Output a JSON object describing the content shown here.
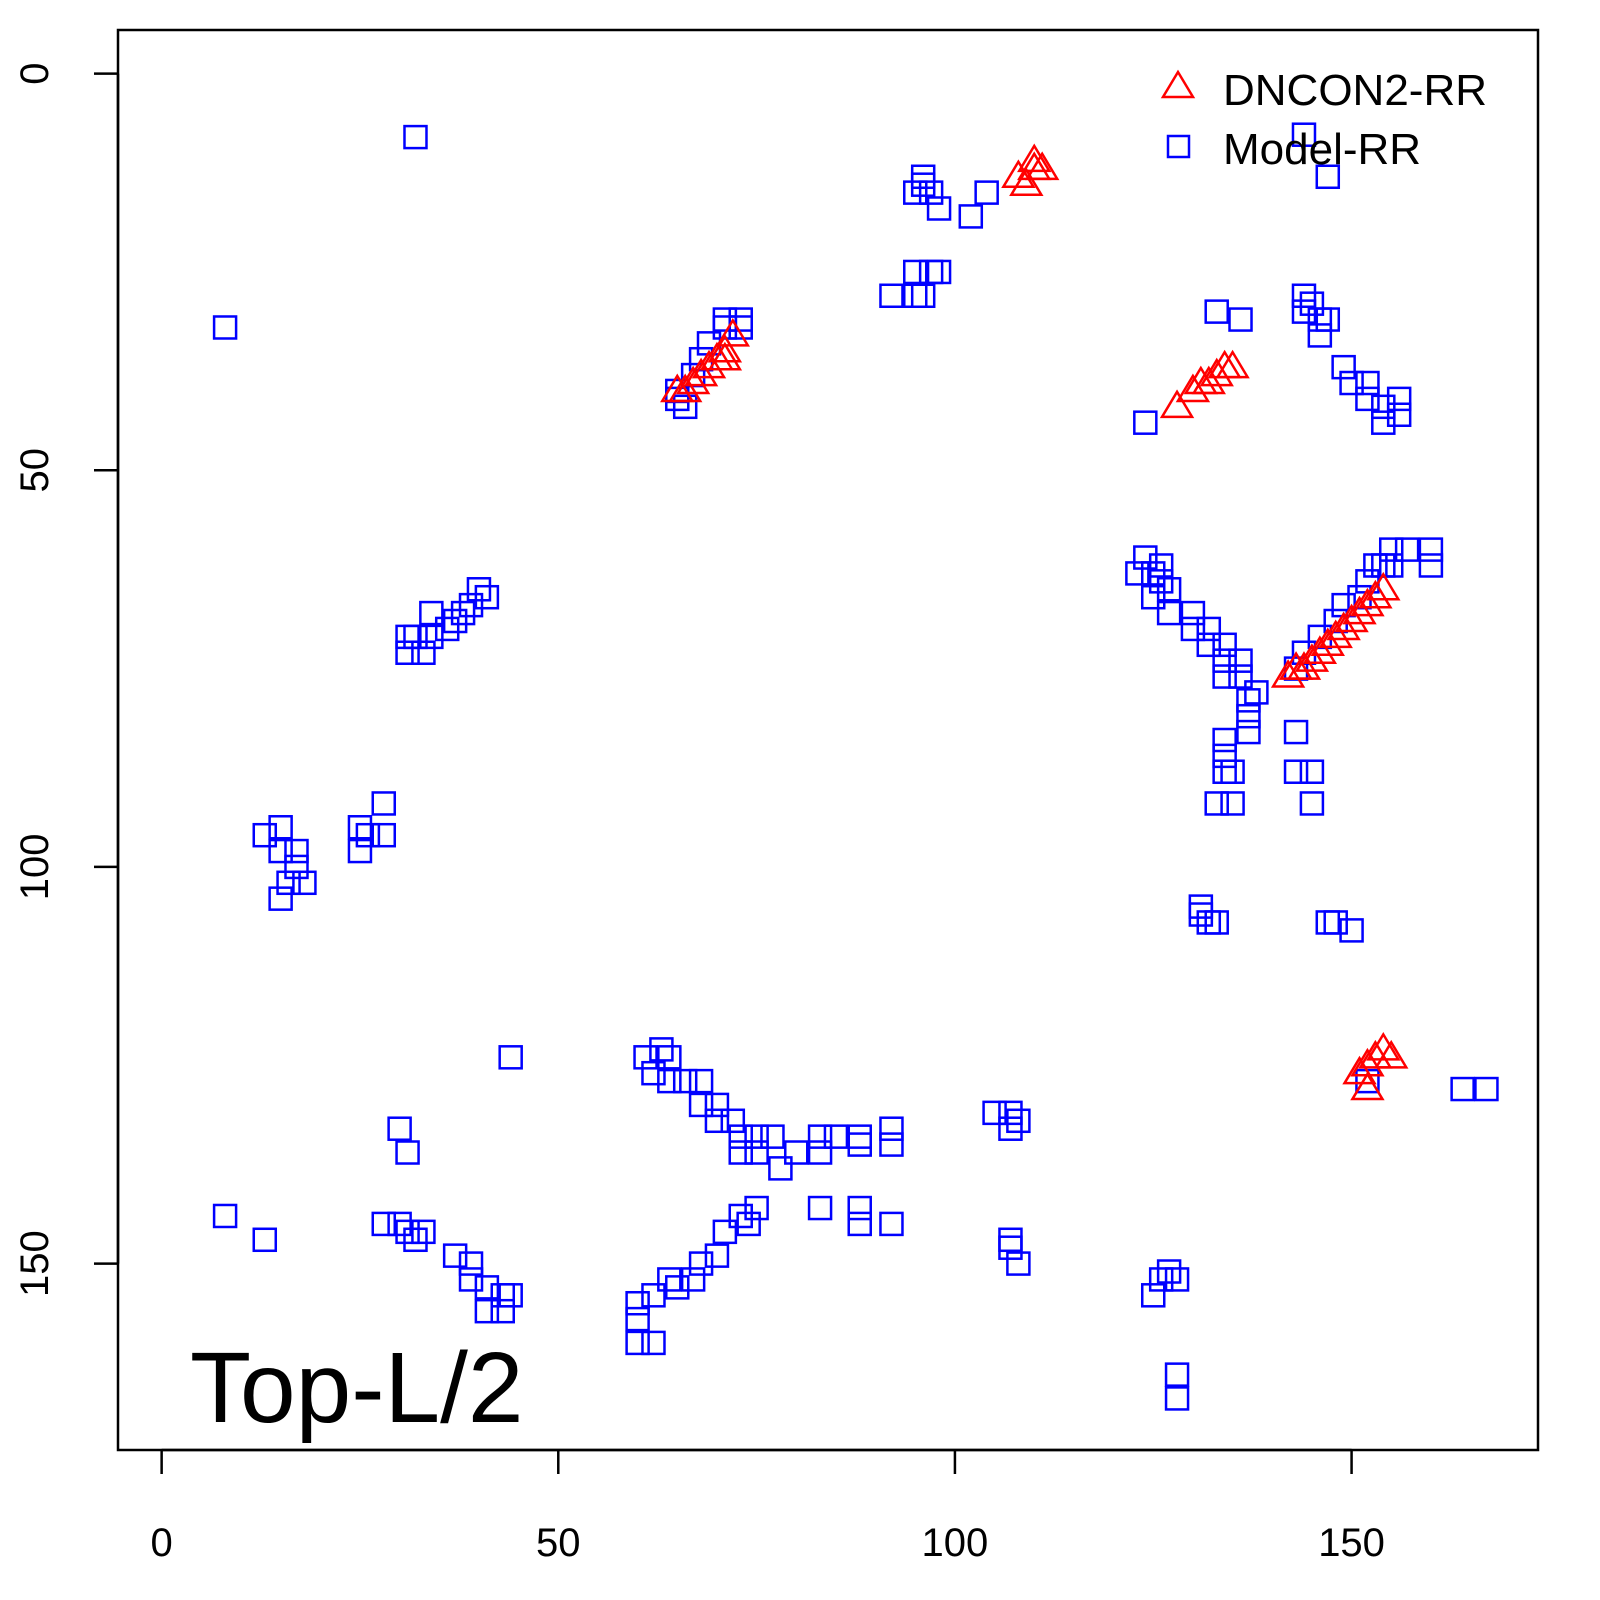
{
  "chart_data": {
    "type": "scatter",
    "title": "",
    "xlabel": "",
    "ylabel": "",
    "xlim": [
      -5.5,
      173.5
    ],
    "ylim": [
      -5.5,
      173.5
    ],
    "y_inverted": true,
    "grid": false,
    "x_ticks": [
      "0",
      "50",
      "100",
      "150"
    ],
    "y_ticks": [
      "0",
      "50",
      "100",
      "150"
    ],
    "annotation": "Top-L/2",
    "legend": {
      "placement": "top-right",
      "entries": [
        "DNCON2-RR",
        "Model-RR"
      ]
    },
    "colors": {
      "DNCON2-RR": "#ff0000",
      "Model-RR": "#0000ff"
    },
    "series": [
      {
        "name": "DNCON2-RR",
        "marker": "triangle",
        "points": [
          [
            110,
            11
          ],
          [
            111,
            12
          ],
          [
            108,
            13
          ],
          [
            109,
            14
          ],
          [
            110,
            12
          ],
          [
            72,
            33
          ],
          [
            71,
            35
          ],
          [
            70,
            36
          ],
          [
            69,
            37
          ],
          [
            68,
            38
          ],
          [
            67,
            39
          ],
          [
            66,
            40
          ],
          [
            65,
            40
          ],
          [
            71,
            36
          ],
          [
            134,
            37
          ],
          [
            133,
            38
          ],
          [
            132,
            39
          ],
          [
            131,
            39
          ],
          [
            130,
            40
          ],
          [
            128,
            42
          ],
          [
            135,
            37
          ],
          [
            154,
            65
          ],
          [
            153,
            66
          ],
          [
            152,
            67
          ],
          [
            151,
            68
          ],
          [
            150,
            69
          ],
          [
            149,
            70
          ],
          [
            148,
            71
          ],
          [
            147,
            72
          ],
          [
            146,
            73
          ],
          [
            145,
            74
          ],
          [
            144,
            75
          ],
          [
            143,
            75
          ],
          [
            142,
            76
          ],
          [
            154,
            123
          ],
          [
            153,
            124
          ],
          [
            152,
            125
          ],
          [
            151,
            126
          ],
          [
            152,
            128
          ],
          [
            155,
            124
          ]
        ]
      },
      {
        "name": "Model-RR",
        "marker": "square",
        "points": [
          [
            32,
            8
          ],
          [
            8,
            32
          ],
          [
            144,
            7.7
          ],
          [
            147,
            13
          ],
          [
            96,
            13
          ],
          [
            95,
            15
          ],
          [
            97,
            15
          ],
          [
            98,
            17
          ],
          [
            102,
            18
          ],
          [
            104,
            15
          ],
          [
            96,
            14
          ],
          [
            92,
            28
          ],
          [
            95,
            25
          ],
          [
            97,
            25
          ],
          [
            98,
            25
          ],
          [
            95,
            28
          ],
          [
            96,
            28
          ],
          [
            73,
            31
          ],
          [
            71,
            31
          ],
          [
            71,
            32
          ],
          [
            73,
            32
          ],
          [
            69,
            34
          ],
          [
            68,
            36
          ],
          [
            67,
            38
          ],
          [
            65,
            40
          ],
          [
            66,
            42
          ],
          [
            65,
            41
          ],
          [
            133,
            30
          ],
          [
            136,
            31
          ],
          [
            124,
            44
          ],
          [
            144,
            28
          ],
          [
            145,
            29
          ],
          [
            146,
            31
          ],
          [
            147,
            31
          ],
          [
            146,
            33
          ],
          [
            144,
            30
          ],
          [
            149,
            37
          ],
          [
            150,
            39
          ],
          [
            152,
            39
          ],
          [
            152,
            41
          ],
          [
            154,
            42
          ],
          [
            156,
            41
          ],
          [
            154,
            44
          ],
          [
            156,
            43
          ],
          [
            124,
            61
          ],
          [
            123,
            63
          ],
          [
            125,
            63
          ],
          [
            126,
            62
          ],
          [
            126,
            64
          ],
          [
            127,
            65
          ],
          [
            125,
            66
          ],
          [
            127,
            68
          ],
          [
            130,
            68
          ],
          [
            130,
            70
          ],
          [
            132,
            70
          ],
          [
            132,
            72
          ],
          [
            134,
            72
          ],
          [
            134,
            74
          ],
          [
            136,
            74
          ],
          [
            134,
            76
          ],
          [
            136,
            76
          ],
          [
            138,
            78
          ],
          [
            137,
            79
          ],
          [
            137,
            81
          ],
          [
            137,
            83
          ],
          [
            134,
            84
          ],
          [
            134,
            86
          ],
          [
            134,
            88
          ],
          [
            135,
            88
          ],
          [
            133,
            92
          ],
          [
            135,
            92
          ],
          [
            143,
            83
          ],
          [
            143,
            88
          ],
          [
            145,
            88
          ],
          [
            145,
            92
          ],
          [
            160,
            60
          ],
          [
            160,
            62
          ],
          [
            157,
            60
          ],
          [
            155,
            60
          ],
          [
            155,
            62
          ],
          [
            154,
            62
          ],
          [
            152,
            64
          ],
          [
            153,
            62
          ],
          [
            151,
            66
          ],
          [
            149,
            67
          ],
          [
            148,
            69
          ],
          [
            146,
            71
          ],
          [
            144,
            73
          ],
          [
            143,
            75
          ],
          [
            41,
            66
          ],
          [
            40,
            65
          ],
          [
            39,
            67
          ],
          [
            38,
            68
          ],
          [
            37,
            69
          ],
          [
            36,
            70
          ],
          [
            34,
            71
          ],
          [
            34,
            68
          ],
          [
            32,
            71
          ],
          [
            31,
            71
          ],
          [
            31,
            73
          ],
          [
            33,
            73
          ],
          [
            28,
            92
          ],
          [
            28,
            96
          ],
          [
            25,
            95
          ],
          [
            25,
            98
          ],
          [
            15,
            95
          ],
          [
            13,
            96
          ],
          [
            15,
            98
          ],
          [
            17,
            98
          ],
          [
            17,
            100
          ],
          [
            18,
            102
          ],
          [
            15,
            104
          ],
          [
            16,
            102
          ],
          [
            26,
            96
          ],
          [
            131,
            105
          ],
          [
            132,
            107
          ],
          [
            133,
            107
          ],
          [
            131,
            106
          ],
          [
            147,
            107
          ],
          [
            148,
            107
          ],
          [
            150,
            108
          ],
          [
            44,
            124
          ],
          [
            61,
            124
          ],
          [
            63,
            123
          ],
          [
            64,
            124
          ],
          [
            62,
            126
          ],
          [
            64,
            127
          ],
          [
            66,
            127
          ],
          [
            68,
            127
          ],
          [
            68,
            130
          ],
          [
            70,
            130
          ],
          [
            70,
            132
          ],
          [
            72,
            132
          ],
          [
            73,
            134
          ],
          [
            75,
            134
          ],
          [
            77,
            134
          ],
          [
            73,
            136
          ],
          [
            75,
            136
          ],
          [
            78,
            138
          ],
          [
            80,
            136
          ],
          [
            83,
            136
          ],
          [
            83,
            134
          ],
          [
            85,
            134
          ],
          [
            88,
            134
          ],
          [
            88,
            135
          ],
          [
            92,
            133
          ],
          [
            92,
            135
          ],
          [
            105,
            131
          ],
          [
            107,
            131
          ],
          [
            108,
            132
          ],
          [
            107,
            133
          ],
          [
            30,
            133
          ],
          [
            31,
            136
          ],
          [
            8,
            144
          ],
          [
            13,
            147
          ],
          [
            28,
            145
          ],
          [
            30,
            145
          ],
          [
            31,
            146
          ],
          [
            32,
            147
          ],
          [
            33,
            146
          ],
          [
            37,
            149
          ],
          [
            39,
            150
          ],
          [
            39,
            152
          ],
          [
            41,
            153
          ],
          [
            41,
            156
          ],
          [
            43,
            154
          ],
          [
            44,
            154
          ],
          [
            43,
            156
          ],
          [
            75,
            143
          ],
          [
            73,
            144
          ],
          [
            74,
            145
          ],
          [
            71,
            146
          ],
          [
            70,
            149
          ],
          [
            68,
            150
          ],
          [
            67,
            152
          ],
          [
            65,
            153
          ],
          [
            64,
            152
          ],
          [
            62,
            154
          ],
          [
            60,
            155
          ],
          [
            60,
            157
          ],
          [
            60,
            160
          ],
          [
            62,
            160
          ],
          [
            83,
            143
          ],
          [
            88,
            143
          ],
          [
            88,
            145
          ],
          [
            92,
            145
          ],
          [
            107,
            147
          ],
          [
            107,
            148
          ],
          [
            108,
            150
          ],
          [
            127,
            151
          ],
          [
            126,
            152
          ],
          [
            125,
            154
          ],
          [
            128,
            152
          ],
          [
            128,
            164
          ],
          [
            128,
            167
          ],
          [
            164,
            128
          ],
          [
            167,
            128
          ],
          [
            152,
            127
          ]
        ]
      }
    ]
  }
}
